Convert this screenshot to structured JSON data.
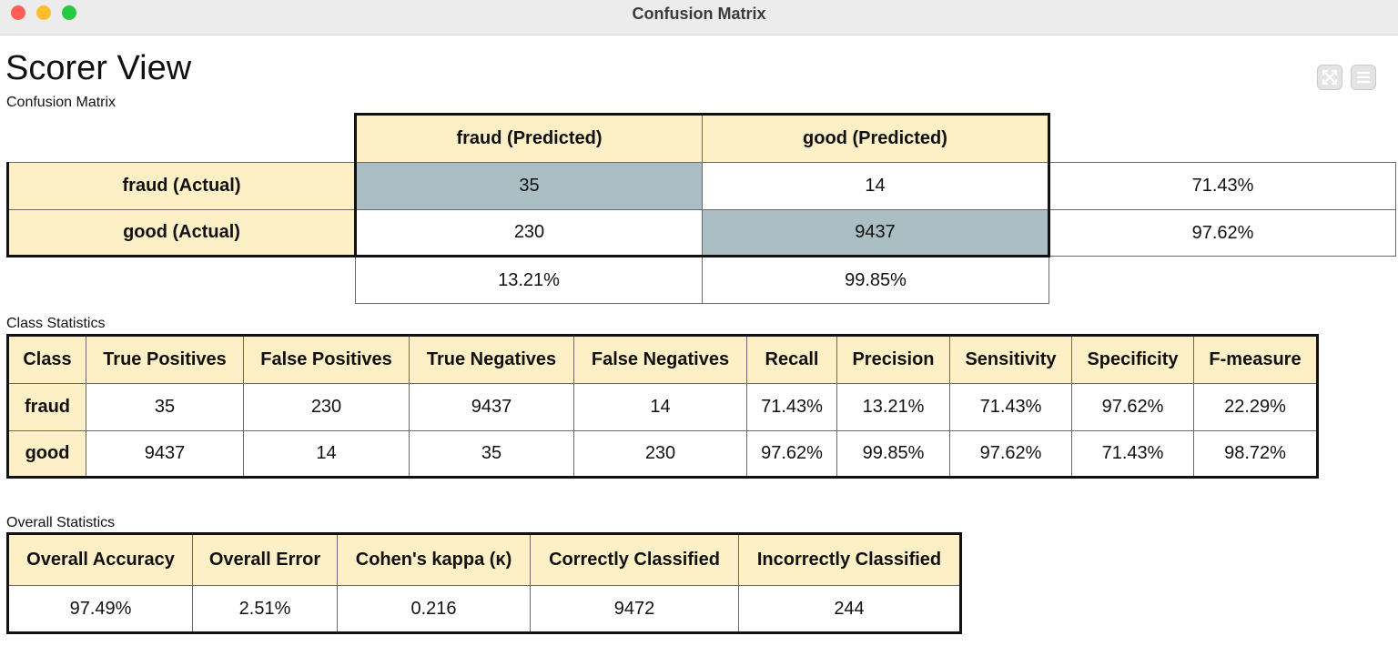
{
  "window": {
    "title": "Confusion Matrix"
  },
  "page": {
    "title": "Scorer View",
    "subtitle": "Confusion Matrix"
  },
  "toolbar": {
    "icons": [
      "fullscreen-icon",
      "menu-icon"
    ]
  },
  "confusion_matrix": {
    "predicted_headers": [
      "fraud (Predicted)",
      "good (Predicted)"
    ],
    "rows": [
      {
        "label": "fraud (Actual)",
        "values": [
          "35",
          "14"
        ],
        "row_rate": "71.43%"
      },
      {
        "label": "good (Actual)",
        "values": [
          "230",
          "9437"
        ],
        "row_rate": "97.62%"
      }
    ],
    "column_rates": [
      "13.21%",
      "99.85%"
    ],
    "highlight_color": "#aabec3",
    "header_color": "#fdf0c7"
  },
  "class_statistics": {
    "title": "Class Statistics",
    "columns": [
      "Class",
      "True Positives",
      "False Positives",
      "True Negatives",
      "False Negatives",
      "Recall",
      "Precision",
      "Sensitivity",
      "Specificity",
      "F-measure"
    ],
    "rows": [
      {
        "class": "fraud",
        "values": [
          "35",
          "230",
          "9437",
          "14",
          "71.43%",
          "13.21%",
          "71.43%",
          "97.62%",
          "22.29%"
        ]
      },
      {
        "class": "good",
        "values": [
          "9437",
          "14",
          "35",
          "230",
          "97.62%",
          "99.85%",
          "97.62%",
          "71.43%",
          "98.72%"
        ]
      }
    ]
  },
  "overall_statistics": {
    "title": "Overall Statistics",
    "columns": [
      "Overall Accuracy",
      "Overall Error",
      "Cohen's kappa (κ)",
      "Correctly Classified",
      "Incorrectly Classified"
    ],
    "values": [
      "97.49%",
      "2.51%",
      "0.216",
      "9472",
      "244"
    ]
  }
}
